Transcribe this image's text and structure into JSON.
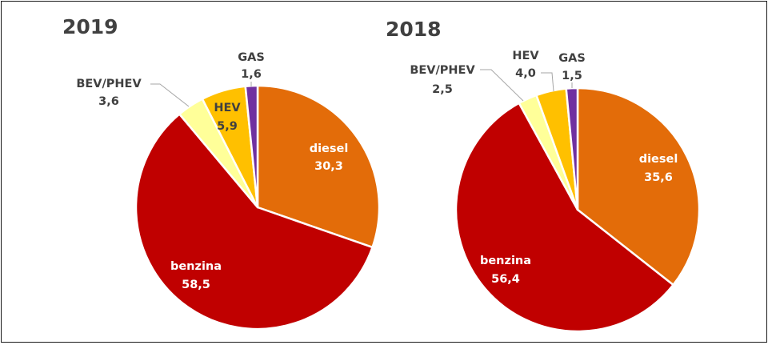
{
  "chart_data": [
    {
      "type": "pie",
      "title": "2019",
      "slices": [
        {
          "label": "diesel",
          "value": 30.3,
          "display": "30,3",
          "color": "#E36C09"
        },
        {
          "label": "benzina",
          "value": 58.5,
          "display": "58,5",
          "color": "#C00000"
        },
        {
          "label": "BEV/PHEV",
          "value": 3.6,
          "display": "3,6",
          "color": "#FFFF99"
        },
        {
          "label": "HEV",
          "value": 5.9,
          "display": "5,9",
          "color": "#FFC000"
        },
        {
          "label": "GAS",
          "value": 1.6,
          "display": "1,6",
          "color": "#7030A0"
        }
      ]
    },
    {
      "type": "pie",
      "title": "2018",
      "slices": [
        {
          "label": "diesel",
          "value": 35.6,
          "display": "35,6",
          "color": "#E36C09"
        },
        {
          "label": "benzina",
          "value": 56.4,
          "display": "56,4",
          "color": "#C00000"
        },
        {
          "label": "BEV/PHEV",
          "value": 2.5,
          "display": "2,5",
          "color": "#FFFF99"
        },
        {
          "label": "HEV",
          "value": 4.0,
          "display": "4,0",
          "color": "#FFC000"
        },
        {
          "label": "GAS",
          "value": 1.5,
          "display": "1,5",
          "color": "#7030A0"
        }
      ]
    }
  ]
}
